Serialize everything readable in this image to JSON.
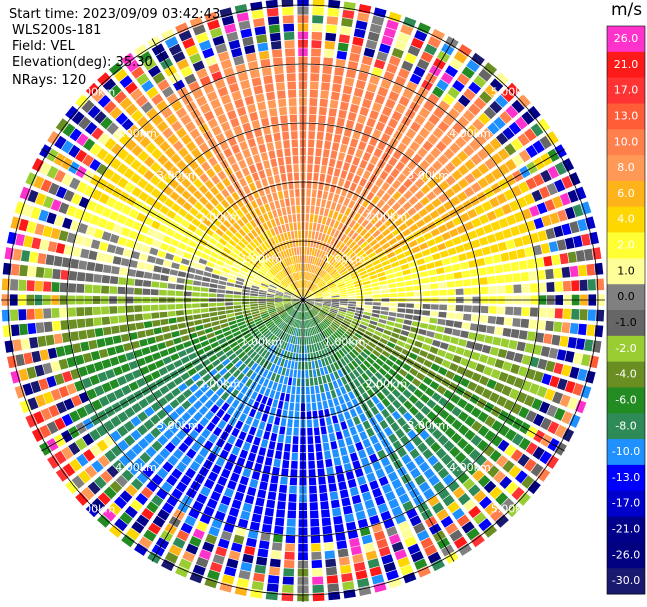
{
  "header": {
    "start_time": "Start time: 2023/09/09 03:42:43",
    "instrument": "WLS200s-181",
    "field": "Field: VEL",
    "elevation": "Elevation(deg): 35.30",
    "nrays": "NRays: 120"
  },
  "chart_data": {
    "type": "ppi-polar",
    "field": "VEL",
    "units": "m/s",
    "nrays": 120,
    "elevation_deg": 35.3,
    "range_rings_km": [
      1.0,
      2.0,
      3.0,
      4.0,
      5.0
    ],
    "ring_labels": [
      "1.00km",
      "2.00km",
      "3.00km",
      "4.00km",
      "5.00km"
    ],
    "colorbar": {
      "ticks": [
        "26.0",
        "21.0",
        "17.0",
        "13.0",
        "10.0",
        "8.0",
        "6.0",
        "4.0",
        "2.0",
        "1.0",
        "0.0",
        "-1.0",
        "-2.0",
        "-4.0",
        "-6.0",
        "-8.0",
        "-10.0",
        "-13.0",
        "-17.0",
        "-21.0",
        "-26.0",
        "-30.0"
      ],
      "colors": [
        "#ff33cc",
        "#ff1a1a",
        "#ff3333",
        "#ff5c38",
        "#ff7f4d",
        "#ff9955",
        "#ffb31a",
        "#ffd700",
        "#ffff33",
        "#ffff99",
        "#808080",
        "#666666",
        "#9acd32",
        "#6b8e23",
        "#228b22",
        "#2e8b57",
        "#1e90ff",
        "#0000ff",
        "#0000cd",
        "#00008b",
        "#000080",
        "#191970"
      ]
    },
    "pattern": {
      "positive_sector": "north (orange/yellow)",
      "negative_sector": "south (green/blue)",
      "max_valid_range_km": 4.2,
      "noise_beyond_km": 4.2
    }
  }
}
